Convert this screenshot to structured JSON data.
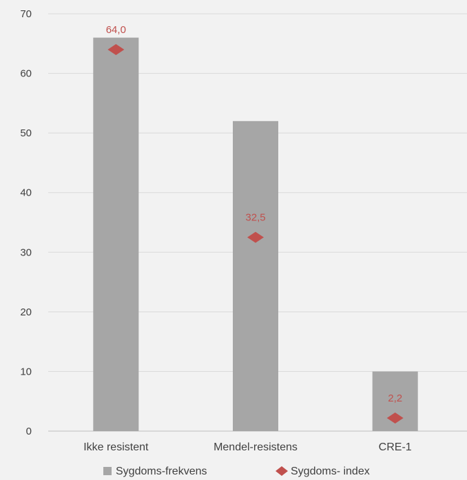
{
  "chart_data": {
    "type": "bar",
    "categories": [
      "Ikke resistent",
      "Mendel-resistens",
      "CRE-1"
    ],
    "ylim": [
      0,
      70
    ],
    "yticks": [
      0,
      10,
      20,
      30,
      40,
      50,
      60,
      70
    ],
    "grid": true,
    "legend_position": "bottom",
    "series": [
      {
        "name": "Sygdoms-frekvens",
        "type": "bar",
        "color": "#a6a6a6",
        "values": [
          66,
          52,
          10
        ]
      },
      {
        "name": "Sygdoms- index",
        "type": "marker",
        "marker": "diamond",
        "color": "#c0504d",
        "values": [
          64.0,
          32.5,
          2.2
        ],
        "labels": [
          "64,0",
          "32,5",
          "2,2"
        ]
      }
    ]
  }
}
